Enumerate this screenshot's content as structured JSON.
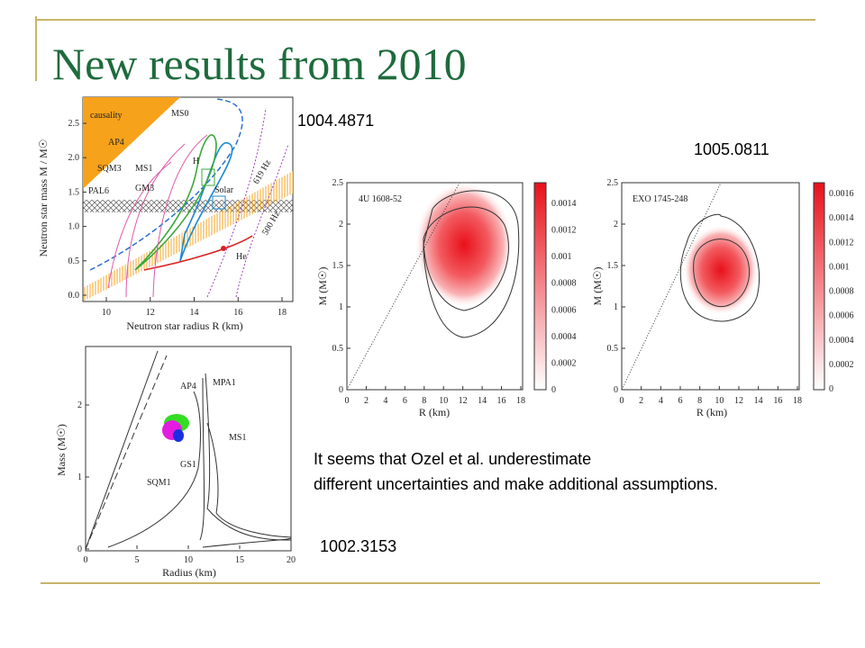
{
  "title": "New results from 2010",
  "references": [
    "1004.4871",
    "1005.0811",
    "1002.3153"
  ],
  "note": [
    "It seems that Ozel et al. underestimate",
    "different uncertainties and make additional assumptions."
  ],
  "figures": [
    {
      "y_label": "Neutron star mass M / M☉",
      "x_label": "Neutron star radius R (km)",
      "yticks": [
        "0.0",
        "0.5",
        "1.0",
        "1.5",
        "2.0",
        "2.5"
      ],
      "xticks": [
        "10",
        "12",
        "14",
        "16",
        "18"
      ],
      "labels": [
        "causality",
        "MS0",
        "AP4",
        "SQM3",
        "MS1",
        "GM3",
        "PAL6",
        "H",
        "Solar",
        "619 Hz",
        "500 Hz",
        "He"
      ]
    },
    {
      "y_label": "Mass (M☉)",
      "x_label": "Radius (km)",
      "yticks": [
        "0",
        "1",
        "2"
      ],
      "xticks": [
        "0",
        "5",
        "10",
        "15",
        "20"
      ],
      "labels": [
        "AP4",
        "MPA1",
        "MS1",
        "GS1",
        "SQM1"
      ]
    },
    {
      "y_label": "M (M☉)",
      "x_label": "R (km)",
      "yticks": [
        "0",
        "0.5",
        "1",
        "1.5",
        "2",
        "2.5"
      ],
      "xticks": [
        "0",
        "2",
        "4",
        "6",
        "8",
        "10",
        "12",
        "14",
        "16",
        "18"
      ],
      "labels": [
        "4U 1608-52"
      ],
      "colorbar": [
        "0",
        "0.0002",
        "0.0004",
        "0.0006",
        "0.0008",
        "0.001",
        "0.0012",
        "0.0014"
      ]
    },
    {
      "y_label": "M (M☉)",
      "x_label": "R (km)",
      "yticks": [
        "0",
        "0.5",
        "1",
        "1.5",
        "2",
        "2.5"
      ],
      "xticks": [
        "0",
        "2",
        "4",
        "6",
        "8",
        "10",
        "12",
        "14",
        "16",
        "18"
      ],
      "labels": [
        "EXO 1745-248"
      ],
      "colorbar": [
        "0",
        "0.0002",
        "0.0004",
        "0.0006",
        "0.0008",
        "0.001",
        "0.0012",
        "0.0014",
        "0.0016"
      ]
    }
  ]
}
